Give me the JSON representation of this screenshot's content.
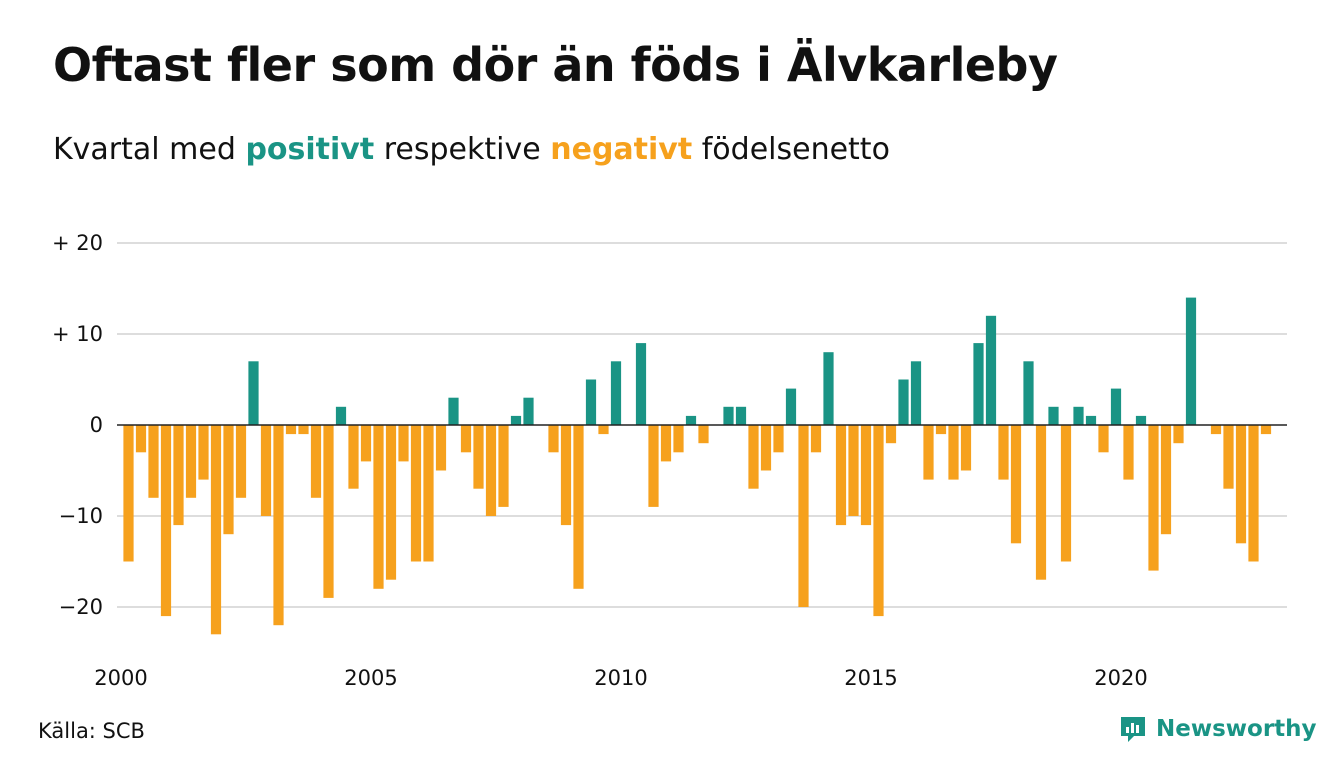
{
  "header": {
    "title": "Oftast fler som dör än föds i Älvkarleby",
    "subtitle_pre": "Kvartal med",
    "subtitle_positive": "positivt",
    "subtitle_mid": "respektive",
    "subtitle_negative": "negativt",
    "subtitle_post": "födelsenetto"
  },
  "footer": {
    "source": "Källa: SCB",
    "brand": "Newsworthy"
  },
  "colors": {
    "positive": "#1a9485",
    "negative": "#f6a11d",
    "grid": "#dddddd",
    "text": "#111111"
  },
  "chart_data": {
    "type": "bar",
    "start": "2000 Q1",
    "x_tick_labels": [
      "2000",
      "2005",
      "2010",
      "2015",
      "2020"
    ],
    "y_tick_labels": [
      "+ 20",
      "+ 10",
      "0",
      "−10",
      "−20"
    ],
    "y_ticks": [
      20,
      10,
      0,
      -10,
      -20
    ],
    "ylim": [
      -25,
      20
    ],
    "grid": true,
    "values": [
      -15,
      -3,
      -8,
      -21,
      -11,
      -8,
      -6,
      -23,
      -12,
      -8,
      7,
      -10,
      -22,
      -1,
      -1,
      -8,
      -19,
      2,
      -7,
      -4,
      -18,
      -17,
      -4,
      -15,
      -15,
      -5,
      3,
      -3,
      -7,
      -10,
      -9,
      1,
      3,
      0,
      -3,
      -11,
      -18,
      5,
      -1,
      7,
      0,
      9,
      -9,
      -4,
      -3,
      1,
      -2,
      0,
      2,
      2,
      -7,
      -5,
      -3,
      4,
      -20,
      -3,
      8,
      -11,
      -10,
      -11,
      -21,
      -2,
      5,
      7,
      -6,
      -1,
      -6,
      -5,
      9,
      12,
      -6,
      -13,
      7,
      -17,
      2,
      -15,
      2,
      1,
      -3,
      4,
      -6,
      1,
      -16,
      -12,
      -2,
      14,
      0,
      -1,
      -7,
      -13,
      -15,
      -1
    ]
  }
}
